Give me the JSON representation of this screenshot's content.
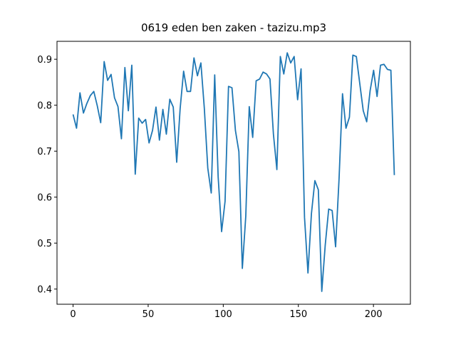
{
  "chart_data": {
    "type": "line",
    "title": "0619 eden ben zaken - tazizu.mp3",
    "x": [
      0,
      2.3,
      4.6,
      6.9,
      9.2,
      11.5,
      13.8,
      16.1,
      18.4,
      20.7,
      23,
      25.3,
      27.6,
      29.9,
      32.2,
      34.5,
      36.8,
      39.1,
      41.4,
      43.7,
      46,
      48.3,
      50.6,
      52.9,
      55.2,
      57.5,
      59.8,
      62.1,
      64.4,
      66.7,
      69,
      71.3,
      73.6,
      75.9,
      78.2,
      80.5,
      82.8,
      85.1,
      87.4,
      89.7,
      92,
      94.3,
      96.6,
      98.9,
      101.2,
      103.5,
      105.8,
      108.1,
      110.4,
      112.7,
      115,
      117.3,
      119.6,
      121.9,
      124.2,
      126.5,
      128.8,
      131.1,
      133.4,
      135.7,
      138,
      140.3,
      142.6,
      144.9,
      147.2,
      149.5,
      151.8,
      154.1,
      156.4,
      158.7,
      161,
      163.3,
      165.6,
      167.9,
      170.2,
      172.5,
      174.8,
      177.1,
      179.4,
      181.7,
      184,
      186.3,
      188.6,
      190.9,
      193.2,
      195.5,
      197.8,
      200.1,
      202.4,
      204.7,
      207,
      209.3,
      211.6,
      213.9
    ],
    "series": [
      {
        "color": "#1f77b4",
        "values": [
          0.78,
          0.75,
          0.827,
          0.783,
          0.804,
          0.821,
          0.83,
          0.799,
          0.762,
          0.895,
          0.854,
          0.867,
          0.816,
          0.797,
          0.727,
          0.882,
          0.788,
          0.887,
          0.65,
          0.772,
          0.761,
          0.769,
          0.718,
          0.745,
          0.796,
          0.724,
          0.791,
          0.737,
          0.813,
          0.796,
          0.676,
          0.793,
          0.874,
          0.83,
          0.83,
          0.903,
          0.864,
          0.892,
          0.793,
          0.663,
          0.609,
          0.866,
          0.644,
          0.525,
          0.591,
          0.841,
          0.838,
          0.745,
          0.699,
          0.445,
          0.559,
          0.797,
          0.73,
          0.853,
          0.857,
          0.872,
          0.868,
          0.857,
          0.737,
          0.66,
          0.906,
          0.868,
          0.914,
          0.892,
          0.906,
          0.812,
          0.879,
          0.556,
          0.435,
          0.564,
          0.636,
          0.616,
          0.395,
          0.496,
          0.574,
          0.571,
          0.492,
          0.64,
          0.825,
          0.75,
          0.774,
          0.909,
          0.906,
          0.847,
          0.788,
          0.764,
          0.832,
          0.876,
          0.819,
          0.887,
          0.889,
          0.878,
          0.876,
          0.648
        ]
      }
    ],
    "xlim": [
      -10.7,
      224.6
    ],
    "ylim": [
      0.367,
      0.939
    ],
    "xticks": [
      0,
      50,
      100,
      150,
      200
    ],
    "yticks": [
      0.4,
      0.5,
      0.6,
      0.7,
      0.8,
      0.9
    ]
  }
}
